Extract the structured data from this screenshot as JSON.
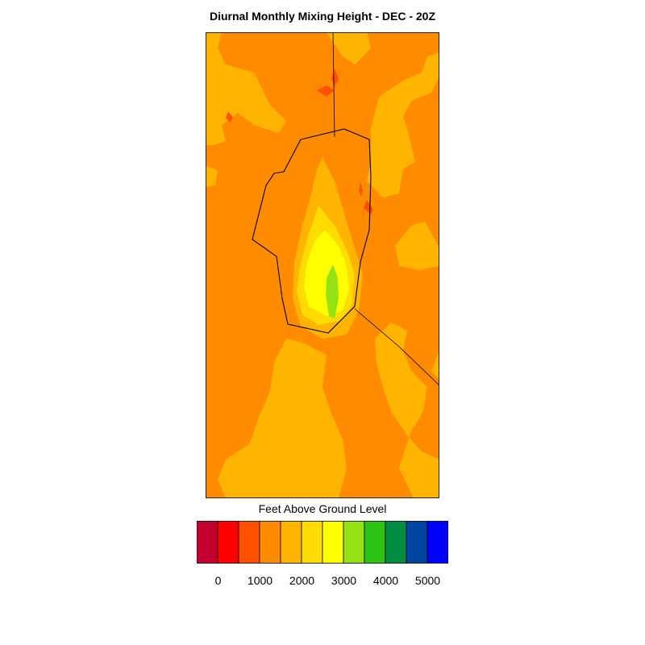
{
  "title": "Diurnal Monthly Mixing Height - DEC - 20Z",
  "legend": {
    "title": "Feet Above Ground Level",
    "colors": [
      "#c3002f",
      "#ff0000",
      "#ff5000",
      "#ff8c00",
      "#ffb400",
      "#ffdc00",
      "#ffff00",
      "#96e114",
      "#2dc314",
      "#008c41",
      "#0046a0",
      "#0000ff"
    ],
    "tick_labels": [
      "0",
      "1000",
      "2000",
      "3000",
      "4000",
      "5000"
    ]
  },
  "colors": {
    "base": "#ff8c00",
    "level_2000": "#ffb400",
    "level_2500": "#ffdc00",
    "level_3000": "#ffff00",
    "level_3500": "#96e114",
    "level_1500": "#ff5000",
    "boundary": "#000000"
  }
}
